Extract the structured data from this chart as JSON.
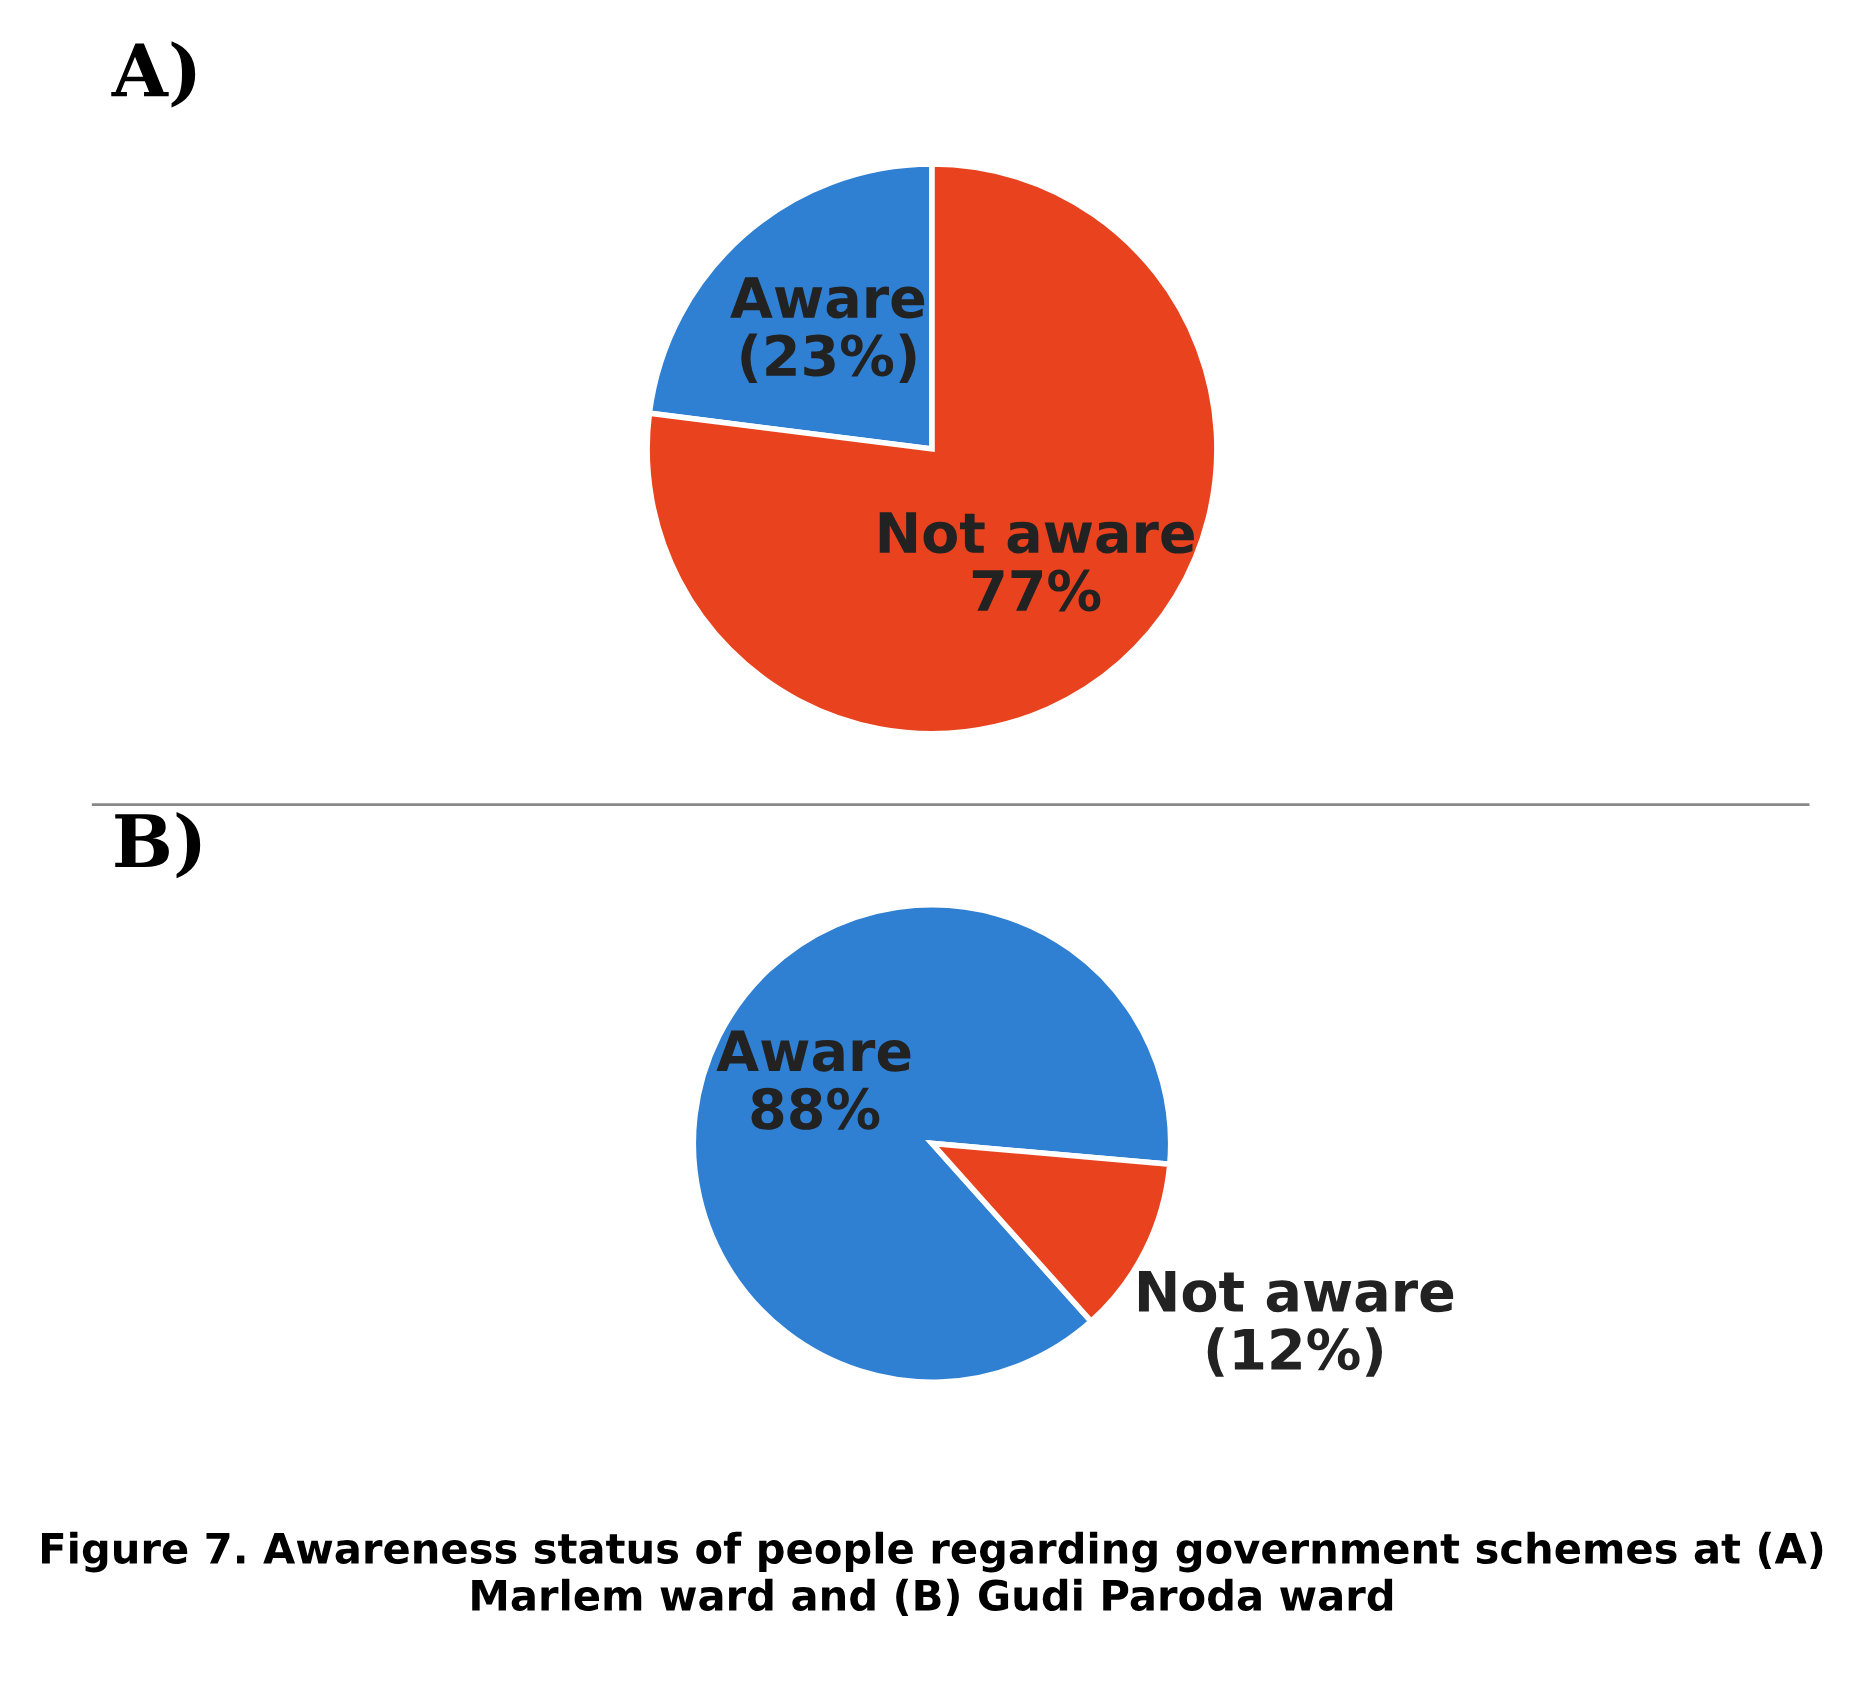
{
  "chart_data": [
    {
      "type": "pie",
      "title": "A)",
      "categories": [
        "Aware",
        "Not aware"
      ],
      "values": [
        23,
        77
      ],
      "value_labels": [
        "(23%)",
        "77%"
      ],
      "colors": [
        "#2f7fd3",
        "#e8431e"
      ],
      "legend": false
    },
    {
      "type": "pie",
      "title": "B)",
      "categories": [
        "Aware",
        "Not aware"
      ],
      "values": [
        88,
        12
      ],
      "value_labels": [
        "88%",
        "(12%)"
      ],
      "colors": [
        "#2f7fd3",
        "#e8431e"
      ],
      "legend": false,
      "annotations": [
        "Figure 7. Awareness status of people regarding government schemes at (A) Marlem ward and (B) Gudi Paroda ward"
      ]
    }
  ]
}
